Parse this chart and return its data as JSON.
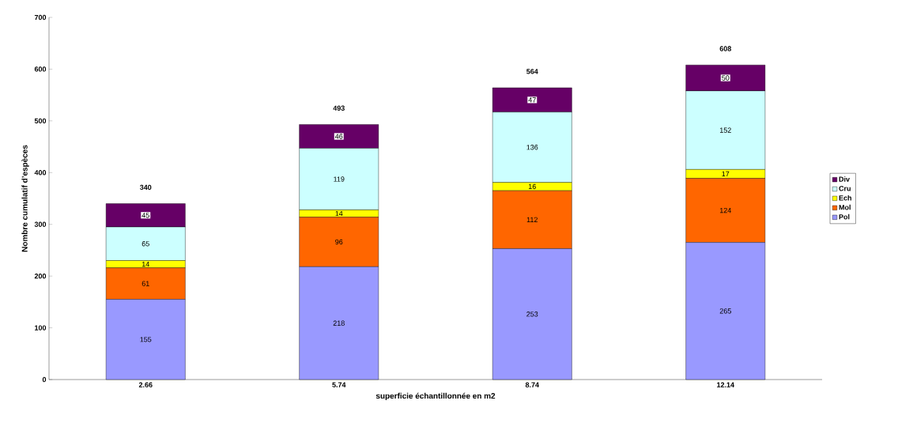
{
  "chart_data": {
    "type": "bar",
    "stacked": true,
    "xlabel": "superficie échantillonnée en m2",
    "ylabel": "Nombre cumulatif d’espèces",
    "categories": [
      "2.66",
      "5.74",
      "8.74",
      "12.14"
    ],
    "series": [
      {
        "name": "Pol",
        "color": "#9999ff",
        "values": [
          155,
          218,
          253,
          265
        ]
      },
      {
        "name": "Mol",
        "color": "#ff6600",
        "values": [
          61,
          96,
          112,
          124
        ]
      },
      {
        "name": "Ech",
        "color": "#ffff00",
        "values": [
          14,
          14,
          16,
          17
        ]
      },
      {
        "name": "Cru",
        "color": "#ccffff",
        "values": [
          65,
          119,
          136,
          152
        ]
      },
      {
        "name": "Div",
        "color": "#660066",
        "values": [
          45,
          46,
          47,
          50
        ]
      }
    ],
    "totals": [
      "340",
      "493",
      "564",
      "608"
    ],
    "data_labels": true,
    "legend": "right",
    "grid": false,
    "ylim": [
      0,
      700
    ],
    "yticks": [
      0,
      100,
      200,
      300,
      400,
      500,
      600,
      700
    ]
  }
}
